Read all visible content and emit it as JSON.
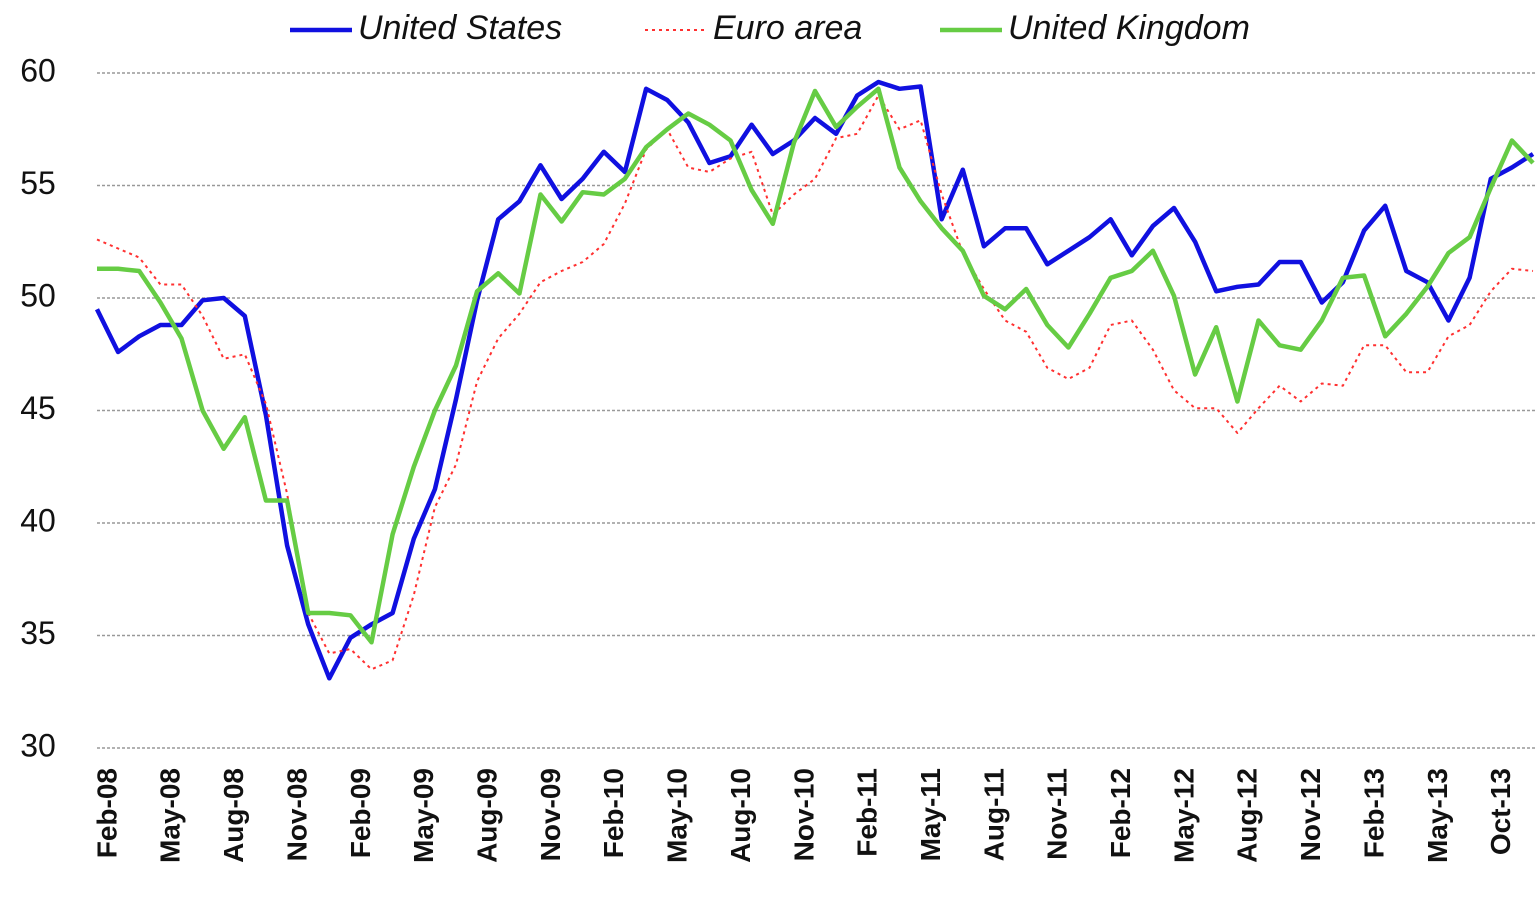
{
  "chart_data": {
    "type": "line",
    "categories": [
      "Feb-08",
      null,
      null,
      "May-08",
      null,
      null,
      "Aug-08",
      null,
      null,
      "Nov-08",
      null,
      null,
      "Feb-09",
      null,
      null,
      "May-09",
      null,
      null,
      "Aug-09",
      null,
      null,
      "Nov-09",
      null,
      null,
      "Feb-10",
      null,
      null,
      "May-10",
      null,
      null,
      "Aug-10",
      null,
      null,
      "Nov-10",
      null,
      null,
      "Feb-11",
      null,
      null,
      "May-11",
      null,
      null,
      "Aug-11",
      null,
      null,
      "Nov-11",
      null,
      null,
      "Feb-12",
      null,
      null,
      "May-12",
      null,
      null,
      "Aug-12",
      null,
      null,
      "Nov-12",
      null,
      null,
      "Feb-13",
      null,
      null,
      "May-13",
      null,
      null,
      "Oct-13",
      null,
      null
    ],
    "series": [
      {
        "name": "United States",
        "color": "#1010e0",
        "line_style": "solid",
        "values": [
          49.5,
          47.6,
          48.3,
          48.8,
          48.8,
          49.9,
          50.0,
          49.2,
          44.8,
          39.0,
          35.5,
          33.1,
          34.9,
          35.5,
          36.0,
          39.3,
          41.5,
          45.5,
          49.9,
          53.5,
          54.3,
          55.9,
          54.4,
          55.3,
          56.5,
          55.6,
          59.3,
          58.8,
          57.8,
          56.0,
          56.3,
          57.7,
          56.4,
          57.0,
          58.0,
          57.3,
          59.0,
          59.6,
          59.3,
          59.4,
          53.5,
          55.7,
          52.3,
          53.1,
          53.1,
          51.5,
          52.1,
          52.7,
          53.5,
          51.9,
          53.2,
          54.0,
          52.5,
          50.3,
          50.5,
          50.6,
          51.6,
          51.6,
          49.8,
          50.7,
          53.0,
          54.1,
          51.2,
          50.7,
          49.0,
          50.9,
          55.3,
          55.8,
          56.4
        ]
      },
      {
        "name": "Euro area",
        "color": "#ff3030",
        "line_style": "dotted",
        "values": [
          52.6,
          52.2,
          51.8,
          50.6,
          50.6,
          49.2,
          47.3,
          47.5,
          45.3,
          41.3,
          36.0,
          34.2,
          34.4,
          33.5,
          33.9,
          36.8,
          40.7,
          42.6,
          46.3,
          48.2,
          49.3,
          50.7,
          51.2,
          51.6,
          52.4,
          54.2,
          56.6,
          57.5,
          55.8,
          55.6,
          56.2,
          56.5,
          53.7,
          54.6,
          55.3,
          57.1,
          57.3,
          59.0,
          57.5,
          57.9,
          54.6,
          52.0,
          50.4,
          49.0,
          48.5,
          46.9,
          46.4,
          46.9,
          48.8,
          49.0,
          47.7,
          45.9,
          45.1,
          45.1,
          44.0,
          45.1,
          46.1,
          45.4,
          46.2,
          46.1,
          47.9,
          47.9,
          46.7,
          46.7,
          48.3,
          48.8,
          50.3,
          51.3,
          51.2
        ]
      },
      {
        "name": "United Kingdom",
        "color": "#66cc44",
        "line_style": "solid",
        "values": [
          51.3,
          51.3,
          51.2,
          49.8,
          48.2,
          45.0,
          43.3,
          44.7,
          41.0,
          41.0,
          36.0,
          36.0,
          35.9,
          34.7,
          39.5,
          42.5,
          45.0,
          47.0,
          50.3,
          51.1,
          50.2,
          54.6,
          53.4,
          54.7,
          54.6,
          55.3,
          56.7,
          57.5,
          58.2,
          57.7,
          57.0,
          54.8,
          53.3,
          56.9,
          59.2,
          57.6,
          58.5,
          59.3,
          55.8,
          54.3,
          53.1,
          52.1,
          50.1,
          49.5,
          50.4,
          48.8,
          47.8,
          49.3,
          50.9,
          51.2,
          52.1,
          50.1,
          46.6,
          48.7,
          45.4,
          49.0,
          47.9,
          47.7,
          49.0,
          50.9,
          51.0,
          48.3,
          49.3,
          50.5,
          52.0,
          52.7,
          54.9,
          57.0,
          56.0
        ]
      }
    ],
    "ylim": [
      30,
      60
    ],
    "yticks": [
      30,
      35,
      40,
      45,
      50,
      55,
      60
    ],
    "grid": true,
    "legend": "top"
  }
}
